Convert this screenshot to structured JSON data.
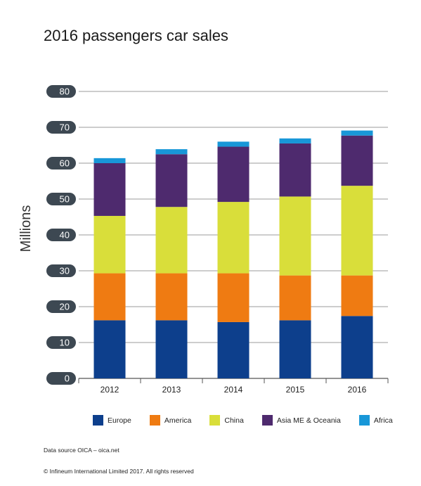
{
  "chart_data": {
    "type": "bar",
    "stacked": true,
    "title": "2016 passengers car sales",
    "ylabel": "Millions",
    "xlabel": "",
    "ylim": [
      0,
      80
    ],
    "yticks": [
      0,
      10,
      20,
      30,
      40,
      50,
      60,
      70,
      80
    ],
    "grid": true,
    "legend_position": "bottom",
    "categories": [
      "2012",
      "2013",
      "2014",
      "2015",
      "2016"
    ],
    "series": [
      {
        "name": "Europe",
        "color": "#0d3f8c",
        "values": [
          16.2,
          16.2,
          15.7,
          16.2,
          17.4
        ]
      },
      {
        "name": "America",
        "color": "#ef7b12",
        "values": [
          13.1,
          13.1,
          13.6,
          12.5,
          11.3
        ]
      },
      {
        "name": "China",
        "color": "#d9de3a",
        "values": [
          16.0,
          18.5,
          19.9,
          22.0,
          25.0
        ]
      },
      {
        "name": "Asia ME & Oceania",
        "color": "#4e2a6e",
        "values": [
          14.7,
          14.7,
          15.4,
          14.8,
          14.0
        ]
      },
      {
        "name": "Africa",
        "color": "#1897d8",
        "values": [
          1.4,
          1.4,
          1.4,
          1.4,
          1.4
        ]
      }
    ]
  },
  "footer": {
    "source": "Data source OICA – oica.net",
    "copyright": "© Infineum International Limited 2017. All rights reserved"
  }
}
